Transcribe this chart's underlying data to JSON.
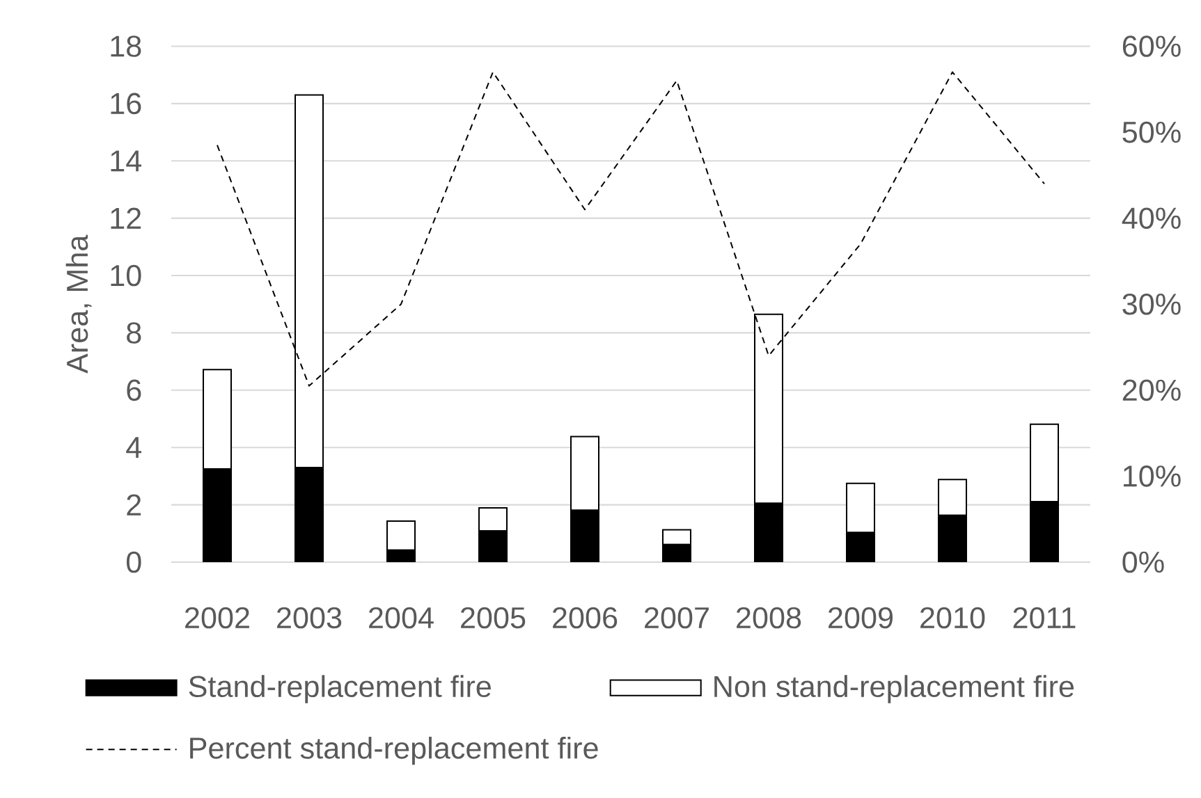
{
  "chart_data": {
    "type": "bar",
    "stacked": true,
    "categories": [
      "2002",
      "2003",
      "2004",
      "2005",
      "2006",
      "2007",
      "2008",
      "2009",
      "2010",
      "2011"
    ],
    "series": [
      {
        "name": "Stand-replacement fire",
        "color": "#000000",
        "values": [
          3.25,
          3.3,
          0.42,
          1.09,
          1.81,
          0.61,
          2.05,
          1.03,
          1.63,
          2.11
        ]
      },
      {
        "name": "Non stand-replacement fire",
        "color": "#ffffff",
        "values": [
          3.47,
          13.0,
          1.01,
          0.8,
          2.57,
          0.52,
          6.6,
          1.72,
          1.25,
          2.7
        ]
      },
      {
        "name": "Percent stand-replacement fire",
        "type": "line",
        "axis": "y2",
        "color": "#000000",
        "line_style": "dashed",
        "values": [
          48.5,
          20.5,
          30,
          57,
          41,
          56,
          24,
          37,
          57,
          44
        ]
      }
    ],
    "ylabel": "Area, Mha",
    "ylim": [
      0,
      18
    ],
    "yticks": [
      0,
      2,
      4,
      6,
      8,
      10,
      12,
      14,
      16,
      18
    ],
    "y2lim": [
      0,
      60
    ],
    "y2ticks": [
      {
        "value": 0,
        "label": "0%"
      },
      {
        "value": 10,
        "label": "10%"
      },
      {
        "value": 20,
        "label": "20%"
      },
      {
        "value": 30,
        "label": "30%"
      },
      {
        "value": 40,
        "label": "40%"
      },
      {
        "value": 50,
        "label": "50%"
      },
      {
        "value": 60,
        "label": "60%"
      }
    ],
    "grid": "y",
    "legend": "bottom"
  }
}
